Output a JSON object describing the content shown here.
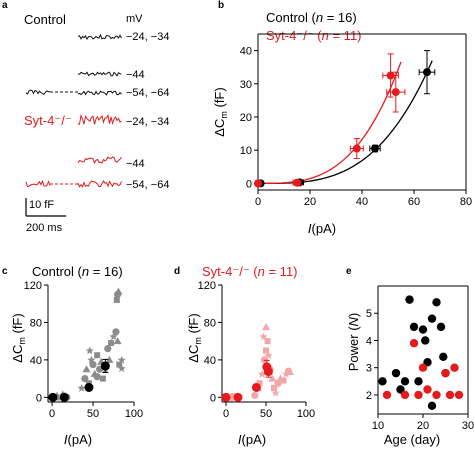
{
  "panel_labels": {
    "a": "a",
    "b": "b",
    "c": "c",
    "d": "d",
    "e": "e"
  },
  "traces": {
    "control_label": "Control",
    "ko_label": "Syt-4⁻/⁻",
    "unit_label": "mV",
    "step_labels": [
      "−24, −34",
      "−44",
      "−54, −64"
    ],
    "scale_y": "10 fF",
    "scale_x": "200 ms",
    "colors": {
      "control": "#111111",
      "ko": "#e41a1c"
    }
  },
  "chart_data": [
    {
      "id": "b",
      "type": "scatter",
      "title": "Control (n = 16) / Syt-4⁻/⁻ (n = 11)",
      "xlabel": "I(pA)",
      "ylabel": "ΔC_m (fF)",
      "xlim": [
        0,
        80
      ],
      "ylim": [
        -2,
        45
      ],
      "xticks": [
        0,
        20,
        40,
        60,
        80
      ],
      "yticks": [
        0,
        10,
        20,
        30,
        40
      ],
      "legend": [
        {
          "prefix": "Control (",
          "n": "n",
          "eq": " = 16)",
          "color": "#000000"
        },
        {
          "prefix": "Syt-4⁻/⁻ (",
          "n": "n",
          "eq": " = 11)",
          "color": "#e41a1c"
        }
      ],
      "series": [
        {
          "name": "Control",
          "color": "#000000",
          "points": [
            {
              "x": 1,
              "y": 0,
              "xerr": 1,
              "yerr": 0.5
            },
            {
              "x": 16,
              "y": 0.3,
              "xerr": 1.5,
              "yerr": 0.5
            },
            {
              "x": 45,
              "y": 10.5,
              "xerr": 2,
              "yerr": 1
            },
            {
              "x": 65,
              "y": 33.5,
              "xerr": 3,
              "yerr": 6.5
            }
          ]
        },
        {
          "name": "Syt-4⁻/⁻",
          "color": "#e41a1c",
          "points": [
            {
              "x": 0,
              "y": 0,
              "xerr": 1,
              "yerr": 0.5
            },
            {
              "x": 15,
              "y": 0.2,
              "xerr": 1.5,
              "yerr": 0.5
            },
            {
              "x": 38,
              "y": 10.5,
              "xerr": 2.5,
              "yerr": 3
            },
            {
              "x": 51,
              "y": 32.5,
              "xerr": 3,
              "yerr": 6.5
            },
            {
              "x": 53,
              "y": 27.5,
              "xerr": 3.5,
              "yerr": 6
            }
          ]
        }
      ]
    },
    {
      "id": "c",
      "type": "scatter",
      "title": "Control (n = 16)",
      "xlabel": "I(pA)",
      "ylabel": "ΔC_m (fF)",
      "xlim": [
        -5,
        100
      ],
      "ylim": [
        -5,
        120
      ],
      "xticks": [
        0,
        50,
        100
      ],
      "yticks": [
        0,
        40,
        80,
        120
      ],
      "colors": {
        "individual": "#8c8c8c",
        "mean": "#000000"
      },
      "individual": [
        {
          "x": 0,
          "y": 0
        },
        {
          "x": 2,
          "y": 1
        },
        {
          "x": 4,
          "y": 0
        },
        {
          "x": 6,
          "y": 2
        },
        {
          "x": 1,
          "y": -1
        },
        {
          "x": 12,
          "y": 0
        },
        {
          "x": 14,
          "y": 1
        },
        {
          "x": 16,
          "y": 2
        },
        {
          "x": 18,
          "y": 0
        },
        {
          "x": 13,
          "y": 3
        },
        {
          "x": 15,
          "y": -1
        },
        {
          "x": 36,
          "y": 10
        },
        {
          "x": 40,
          "y": 20
        },
        {
          "x": 42,
          "y": 30
        },
        {
          "x": 45,
          "y": 15
        },
        {
          "x": 48,
          "y": 40
        },
        {
          "x": 50,
          "y": 35
        },
        {
          "x": 52,
          "y": 25
        },
        {
          "x": 55,
          "y": 45
        },
        {
          "x": 46,
          "y": 50
        },
        {
          "x": 58,
          "y": 30
        },
        {
          "x": 60,
          "y": 38
        },
        {
          "x": 62,
          "y": 20
        },
        {
          "x": 65,
          "y": 30
        },
        {
          "x": 68,
          "y": 52
        },
        {
          "x": 70,
          "y": 40
        },
        {
          "x": 72,
          "y": 58
        },
        {
          "x": 75,
          "y": 65
        },
        {
          "x": 78,
          "y": 70
        },
        {
          "x": 80,
          "y": 60
        },
        {
          "x": 82,
          "y": 35
        },
        {
          "x": 85,
          "y": 40
        },
        {
          "x": 80,
          "y": 110
        },
        {
          "x": 81,
          "y": 113
        },
        {
          "x": 79,
          "y": 104
        },
        {
          "x": 85,
          "y": 31
        },
        {
          "x": 55,
          "y": 22
        }
      ],
      "means": [
        {
          "x": 1,
          "y": 0,
          "xerr": 2,
          "yerr": 2
        },
        {
          "x": 15,
          "y": 0,
          "xerr": 2,
          "yerr": 2
        },
        {
          "x": 45,
          "y": 10.5,
          "xerr": 3,
          "yerr": 3
        },
        {
          "x": 65,
          "y": 33.5,
          "xerr": 4,
          "yerr": 7
        }
      ]
    },
    {
      "id": "d",
      "type": "scatter",
      "title": "Syt-4⁻/⁻ (n = 11)",
      "xlabel": "I(pA)",
      "ylabel": "ΔC_m (fF)",
      "xlim": [
        -5,
        100
      ],
      "ylim": [
        -5,
        120
      ],
      "xticks": [
        0,
        50,
        100
      ],
      "yticks": [
        0,
        40,
        80,
        120
      ],
      "colors": {
        "individual": "#f4a6a6",
        "mean": "#e41a1c"
      },
      "individual": [
        {
          "x": 0,
          "y": 0
        },
        {
          "x": 2,
          "y": 1
        },
        {
          "x": 4,
          "y": -1
        },
        {
          "x": 6,
          "y": 0
        },
        {
          "x": 8,
          "y": 1
        },
        {
          "x": 12,
          "y": 0
        },
        {
          "x": 14,
          "y": 1
        },
        {
          "x": 16,
          "y": 0
        },
        {
          "x": 36,
          "y": 2
        },
        {
          "x": 40,
          "y": 10
        },
        {
          "x": 42,
          "y": 15
        },
        {
          "x": 45,
          "y": 25
        },
        {
          "x": 48,
          "y": 40
        },
        {
          "x": 50,
          "y": 75
        },
        {
          "x": 52,
          "y": 60
        },
        {
          "x": 53,
          "y": 45
        },
        {
          "x": 55,
          "y": 30
        },
        {
          "x": 58,
          "y": 20
        },
        {
          "x": 60,
          "y": 10
        },
        {
          "x": 62,
          "y": 5
        },
        {
          "x": 65,
          "y": 15
        },
        {
          "x": 68,
          "y": 20
        },
        {
          "x": 72,
          "y": 18
        },
        {
          "x": 75,
          "y": 25
        },
        {
          "x": 78,
          "y": 28
        },
        {
          "x": 80,
          "y": 27
        },
        {
          "x": 50,
          "y": 50
        },
        {
          "x": 47,
          "y": 65
        }
      ],
      "means": [
        {
          "x": 0,
          "y": 0,
          "xerr": 2,
          "yerr": 2
        },
        {
          "x": 15,
          "y": 0,
          "xerr": 2,
          "yerr": 2
        },
        {
          "x": 38,
          "y": 10.5,
          "xerr": 3,
          "yerr": 3
        },
        {
          "x": 51,
          "y": 32.5,
          "xerr": 3,
          "yerr": 7
        },
        {
          "x": 53,
          "y": 27.5,
          "xerr": 4,
          "yerr": 6
        }
      ]
    },
    {
      "id": "e",
      "type": "scatter",
      "title": "",
      "xlabel": "Age (day)",
      "ylabel": "Power (N)",
      "xlim": [
        10,
        30
      ],
      "ylim": [
        1.3,
        6.0
      ],
      "xticks": [
        10,
        20,
        30
      ],
      "yticks": [
        2,
        3,
        4,
        5
      ],
      "series": [
        {
          "name": "Control",
          "color": "#000000",
          "points": [
            {
              "x": 11,
              "y": 2.5
            },
            {
              "x": 14,
              "y": 2.8
            },
            {
              "x": 15,
              "y": 2.2
            },
            {
              "x": 17,
              "y": 5.5
            },
            {
              "x": 18,
              "y": 4.5
            },
            {
              "x": 19,
              "y": 2.5
            },
            {
              "x": 20,
              "y": 4.4
            },
            {
              "x": 20.5,
              "y": 4.0
            },
            {
              "x": 21,
              "y": 3.2
            },
            {
              "x": 22,
              "y": 4.8
            },
            {
              "x": 23,
              "y": 5.4
            },
            {
              "x": 24,
              "y": 4.5
            },
            {
              "x": 24.5,
              "y": 3.4
            },
            {
              "x": 25,
              "y": 2.8
            },
            {
              "x": 22,
              "y": 1.6
            },
            {
              "x": 16,
              "y": 2.5
            }
          ]
        },
        {
          "name": "Syt-4⁻/⁻",
          "color": "#e41a1c",
          "points": [
            {
              "x": 12,
              "y": 2.0
            },
            {
              "x": 16,
              "y": 2.0
            },
            {
              "x": 18,
              "y": 3.9
            },
            {
              "x": 19,
              "y": 2.0
            },
            {
              "x": 20,
              "y": 3.0
            },
            {
              "x": 21,
              "y": 2.2
            },
            {
              "x": 23,
              "y": 2.0
            },
            {
              "x": 25,
              "y": 2.8
            },
            {
              "x": 26,
              "y": 2.0
            },
            {
              "x": 27,
              "y": 3.0
            },
            {
              "x": 28,
              "y": 2.0
            }
          ]
        }
      ]
    }
  ]
}
